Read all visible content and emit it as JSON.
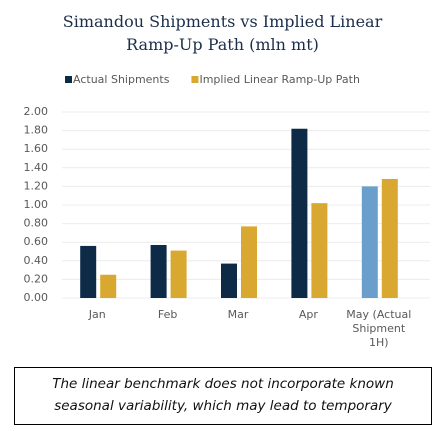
{
  "chart_data": {
    "type": "bar",
    "title": "Simandou Shipments vs Implied Linear Ramp-Up Path (mln mt)",
    "categories": [
      "Jan",
      "Feb",
      "Mar",
      "Apr",
      "May (Actual Shipment 1H)"
    ],
    "series": [
      {
        "name": "Actual Shipments",
        "color": "#0d2a47",
        "colors": [
          "#0d2a47",
          "#0d2a47",
          "#0d2a47",
          "#0d2a47",
          "#6a9fcb"
        ],
        "values": [
          0.56,
          0.57,
          0.37,
          1.82,
          1.2
        ]
      },
      {
        "name": "Implied Linear Ramp-Up Path",
        "color": "#d9a830",
        "values": [
          0.25,
          0.51,
          0.77,
          1.02,
          1.28
        ]
      }
    ],
    "ylim": [
      0,
      2.0
    ],
    "yticks": [
      {
        "value": 0,
        "label": "0.00"
      },
      {
        "value": 0.2,
        "label": "0.20"
      },
      {
        "value": 0.4,
        "label": "0.40"
      },
      {
        "value": 0.6,
        "label": "0.60"
      },
      {
        "value": 0.8,
        "label": "0.80"
      },
      {
        "value": 1.0,
        "label": "1.00"
      },
      {
        "value": 1.2,
        "label": "1.20"
      },
      {
        "value": 1.4,
        "label": "1.40"
      },
      {
        "value": 1.6,
        "label": "1.60"
      },
      {
        "value": 1.8,
        "label": "1.80"
      },
      {
        "value": 2.0,
        "label": "2.00"
      }
    ],
    "grid": true,
    "legend": "top",
    "caption": "The linear benchmark does not incorporate known seasonal variability, which may lead to temporary"
  }
}
